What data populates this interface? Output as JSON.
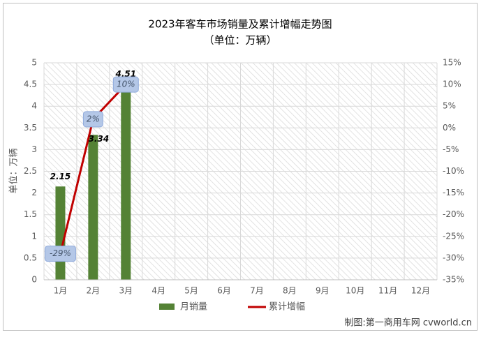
{
  "chart_data": {
    "type": "bar",
    "title": "2023年客车市场销量及累计增幅走势图",
    "subtitle": "（单位：万辆）",
    "y_label": "单位：万辆",
    "source": "制图:第一商用车网 cvworld.cn",
    "categories": [
      "1月",
      "2月",
      "3月",
      "4月",
      "5月",
      "6月",
      "7月",
      "8月",
      "9月",
      "10月",
      "11月",
      "12月"
    ],
    "series": [
      {
        "name": "月销量",
        "type": "bar",
        "color": "#548235",
        "values": [
          2.15,
          3.34,
          4.51,
          null,
          null,
          null,
          null,
          null,
          null,
          null,
          null,
          null
        ]
      },
      {
        "name": "累计增幅",
        "type": "line",
        "axis": "y2",
        "color": "#c00000",
        "values": [
          -29,
          2,
          10,
          null,
          null,
          null,
          null,
          null,
          null,
          null,
          null,
          null
        ],
        "value_labels": [
          "-29%",
          "2%",
          "10%",
          null,
          null,
          null,
          null,
          null,
          null,
          null,
          null,
          null
        ]
      }
    ],
    "ylim": [
      0,
      5
    ],
    "yticks": [
      0,
      0.5,
      1,
      1.5,
      2,
      2.5,
      3,
      3.5,
      4,
      4.5,
      5
    ],
    "y2lim": [
      -35,
      15
    ],
    "y2ticks": [
      {
        "value": -35,
        "label": "-35%"
      },
      {
        "value": -30,
        "label": "-30%"
      },
      {
        "value": -25,
        "label": "-25%"
      },
      {
        "value": -20,
        "label": "-20%"
      },
      {
        "value": -15,
        "label": "-15%"
      },
      {
        "value": -10,
        "label": "-10%"
      },
      {
        "value": -5,
        "label": "-5%"
      },
      {
        "value": 0,
        "label": "0%"
      },
      {
        "value": 5,
        "label": "5%"
      },
      {
        "value": 10,
        "label": "10%"
      },
      {
        "value": 15,
        "label": "15%"
      }
    ],
    "grid": true
  }
}
